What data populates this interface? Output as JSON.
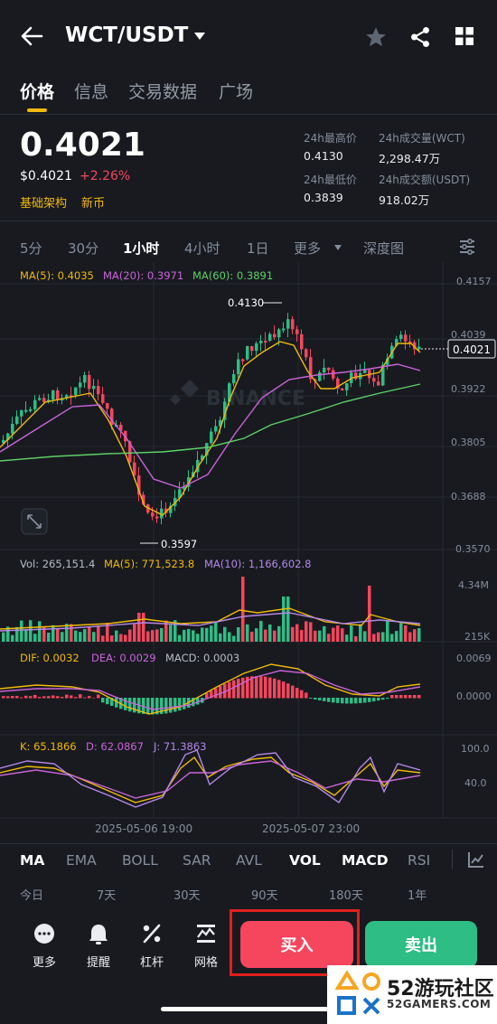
{
  "header": {
    "pair": "WCT/USDT",
    "back_icon": "arrow-left-icon",
    "dropdown_icon": "caret-down-icon",
    "star_icon": "star-icon",
    "share_icon": "share-icon",
    "grid_icon": "grid-icon"
  },
  "tabs": [
    {
      "label": "价格",
      "active": true
    },
    {
      "label": "信息"
    },
    {
      "label": "交易数据"
    },
    {
      "label": "广场"
    }
  ],
  "price": {
    "last": "0.4021",
    "usd": "$0.4021",
    "change": "+2.26%",
    "tags": [
      "基础架构",
      "新币"
    ]
  },
  "stats": {
    "high_label": "24h最高价",
    "high": "0.4130",
    "low_label": "24h最低价",
    "low": "0.3839",
    "vol_label": "24h成交量(WCT)",
    "vol": "2,298.47万",
    "amount_label": "24h成交额(USDT)",
    "amount": "918.02万"
  },
  "intervals": [
    "5分",
    "30分",
    "1小时",
    "4小时",
    "1日",
    "更多",
    "深度图"
  ],
  "chart_data": {
    "type": "candlestick",
    "y_axis_ticks": [
      "0.4157",
      "0.4039",
      "0.3922",
      "0.3805",
      "0.3688",
      "0.3570"
    ],
    "current_price": "0.4021",
    "high_marker": "0.4130",
    "low_marker": "0.3597",
    "ma_legend": {
      "ma5": "MA(5): 0.4035",
      "ma20": "MA(20): 0.3971",
      "ma60": "MA(60): 0.3891"
    },
    "vol_legend": {
      "vol": "Vol: 265,151.4",
      "ma5": "MA(5): 771,523.8",
      "ma10": "MA(10): 1,166,602.8"
    },
    "vol_ticks": [
      "4.34M",
      "215K"
    ],
    "macd_legend": {
      "dif": "DIF: 0.0032",
      "dea": "DEA: 0.0029",
      "macd": "MACD: 0.0003"
    },
    "macd_ticks": [
      "0.0069",
      "0.0000"
    ],
    "kdj_legend": {
      "k": "K: 65.1866",
      "d": "D: 62.0867",
      "j": "J: 71.3863"
    },
    "kdj_ticks": [
      "100.0",
      "40.0"
    ],
    "x_labels": [
      "2025-05-06 19:00",
      "2025-05-07 23:00"
    ],
    "watermark": "BINANCE"
  },
  "indicators": [
    "MA",
    "EMA",
    "BOLL",
    "SAR",
    "AVL",
    "VOL",
    "MACD",
    "RSI"
  ],
  "ranges": [
    "今日",
    "7天",
    "30天",
    "90天",
    "180天",
    "1年"
  ],
  "bottom": {
    "more": "更多",
    "alert": "提醒",
    "leverage": "杠杆",
    "grid": "网格",
    "buy": "买入",
    "sell": "卖出"
  },
  "overlay_watermark": {
    "text": "52游玩社区",
    "sub": "52GAMERS.COM"
  },
  "colors": {
    "up": "#2ebd85",
    "down": "#f6465d",
    "accent": "#f0b90b",
    "bg": "#181a20"
  }
}
